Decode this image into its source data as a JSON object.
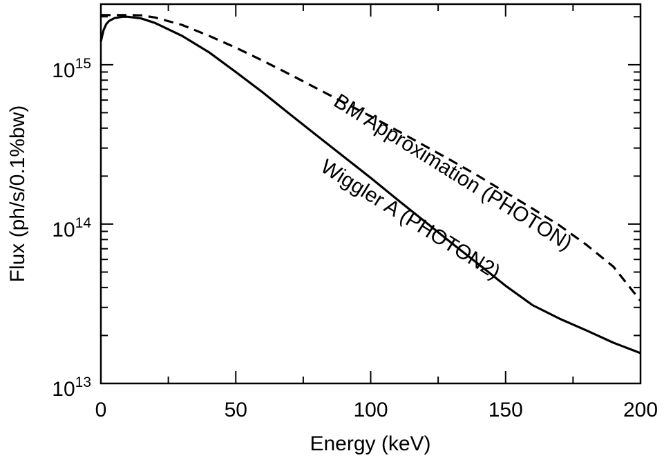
{
  "chart_data": {
    "type": "line",
    "xlabel": "Energy  (keV)",
    "ylabel": "Flux (ph/s/0.1%bw)",
    "xlim": [
      0,
      200
    ],
    "ylim": [
      10000000000000.0,
      2400000000000000.0
    ],
    "y_scale": "log",
    "x_ticks": [
      {
        "value": 0,
        "label": "0"
      },
      {
        "value": 50,
        "label": "50"
      },
      {
        "value": 100,
        "label": "100"
      },
      {
        "value": 150,
        "label": "150"
      },
      {
        "value": 200,
        "label": "200"
      }
    ],
    "y_ticks": [
      {
        "value": 10000000000000.0,
        "base": "10",
        "exp": "13"
      },
      {
        "value": 100000000000000.0,
        "base": "10",
        "exp": "14"
      },
      {
        "value": 1000000000000000.0,
        "base": "10",
        "exp": "15"
      }
    ],
    "grid": false,
    "series": [
      {
        "name": "BM Approximation (PHOTON)",
        "style": "dashed",
        "color": "#000000",
        "x": [
          0,
          5,
          10,
          15,
          20,
          30,
          40,
          50,
          60,
          70,
          80,
          90,
          100,
          110,
          120,
          130,
          140,
          150,
          160,
          170,
          180,
          190,
          200
        ],
        "y": [
          2050000000000000.0,
          2050000000000000.0,
          2050000000000000.0,
          2040000000000000.0,
          1980000000000000.0,
          1780000000000000.0,
          1520000000000000.0,
          1280000000000000.0,
          1060000000000000.0,
          870000000000000.0,
          710000000000000.0,
          580000000000000.0,
          475000000000000.0,
          385000000000000.0,
          310000000000000.0,
          250000000000000.0,
          200000000000000.0,
          158000000000000.0,
          125000000000000.0,
          98000000000000.0,
          74000000000000.0,
          54000000000000.0,
          33000000000000.0
        ]
      },
      {
        "name": "Wiggler A  (PHOTON2)",
        "style": "solid",
        "color": "#000000",
        "x": [
          0,
          1,
          2,
          3,
          5,
          8,
          10,
          15,
          20,
          30,
          40,
          50,
          60,
          70,
          80,
          90,
          100,
          110,
          120,
          130,
          140,
          150,
          160,
          170,
          180,
          190,
          200
        ],
        "y": [
          1400000000000000.0,
          1650000000000000.0,
          1800000000000000.0,
          1880000000000000.0,
          1960000000000000.0,
          2000000000000000.0,
          2000000000000000.0,
          1950000000000000.0,
          1830000000000000.0,
          1520000000000000.0,
          1200000000000000.0,
          900000000000000.0,
          670000000000000.0,
          490000000000000.0,
          360000000000000.0,
          265000000000000.0,
          195000000000000.0,
          142000000000000.0,
          104000000000000.0,
          76000000000000.0,
          56000000000000.0,
          41000000000000.0,
          31000000000000.0,
          25500000000000.0,
          21500000000000.0,
          18000000000000.0,
          15500000000000.0
        ]
      }
    ],
    "annotations": [
      {
        "text": "BM Approximation (PHOTON)",
        "series": 0
      },
      {
        "text": "Wiggler A  (PHOTON2)",
        "series": 1
      }
    ]
  }
}
